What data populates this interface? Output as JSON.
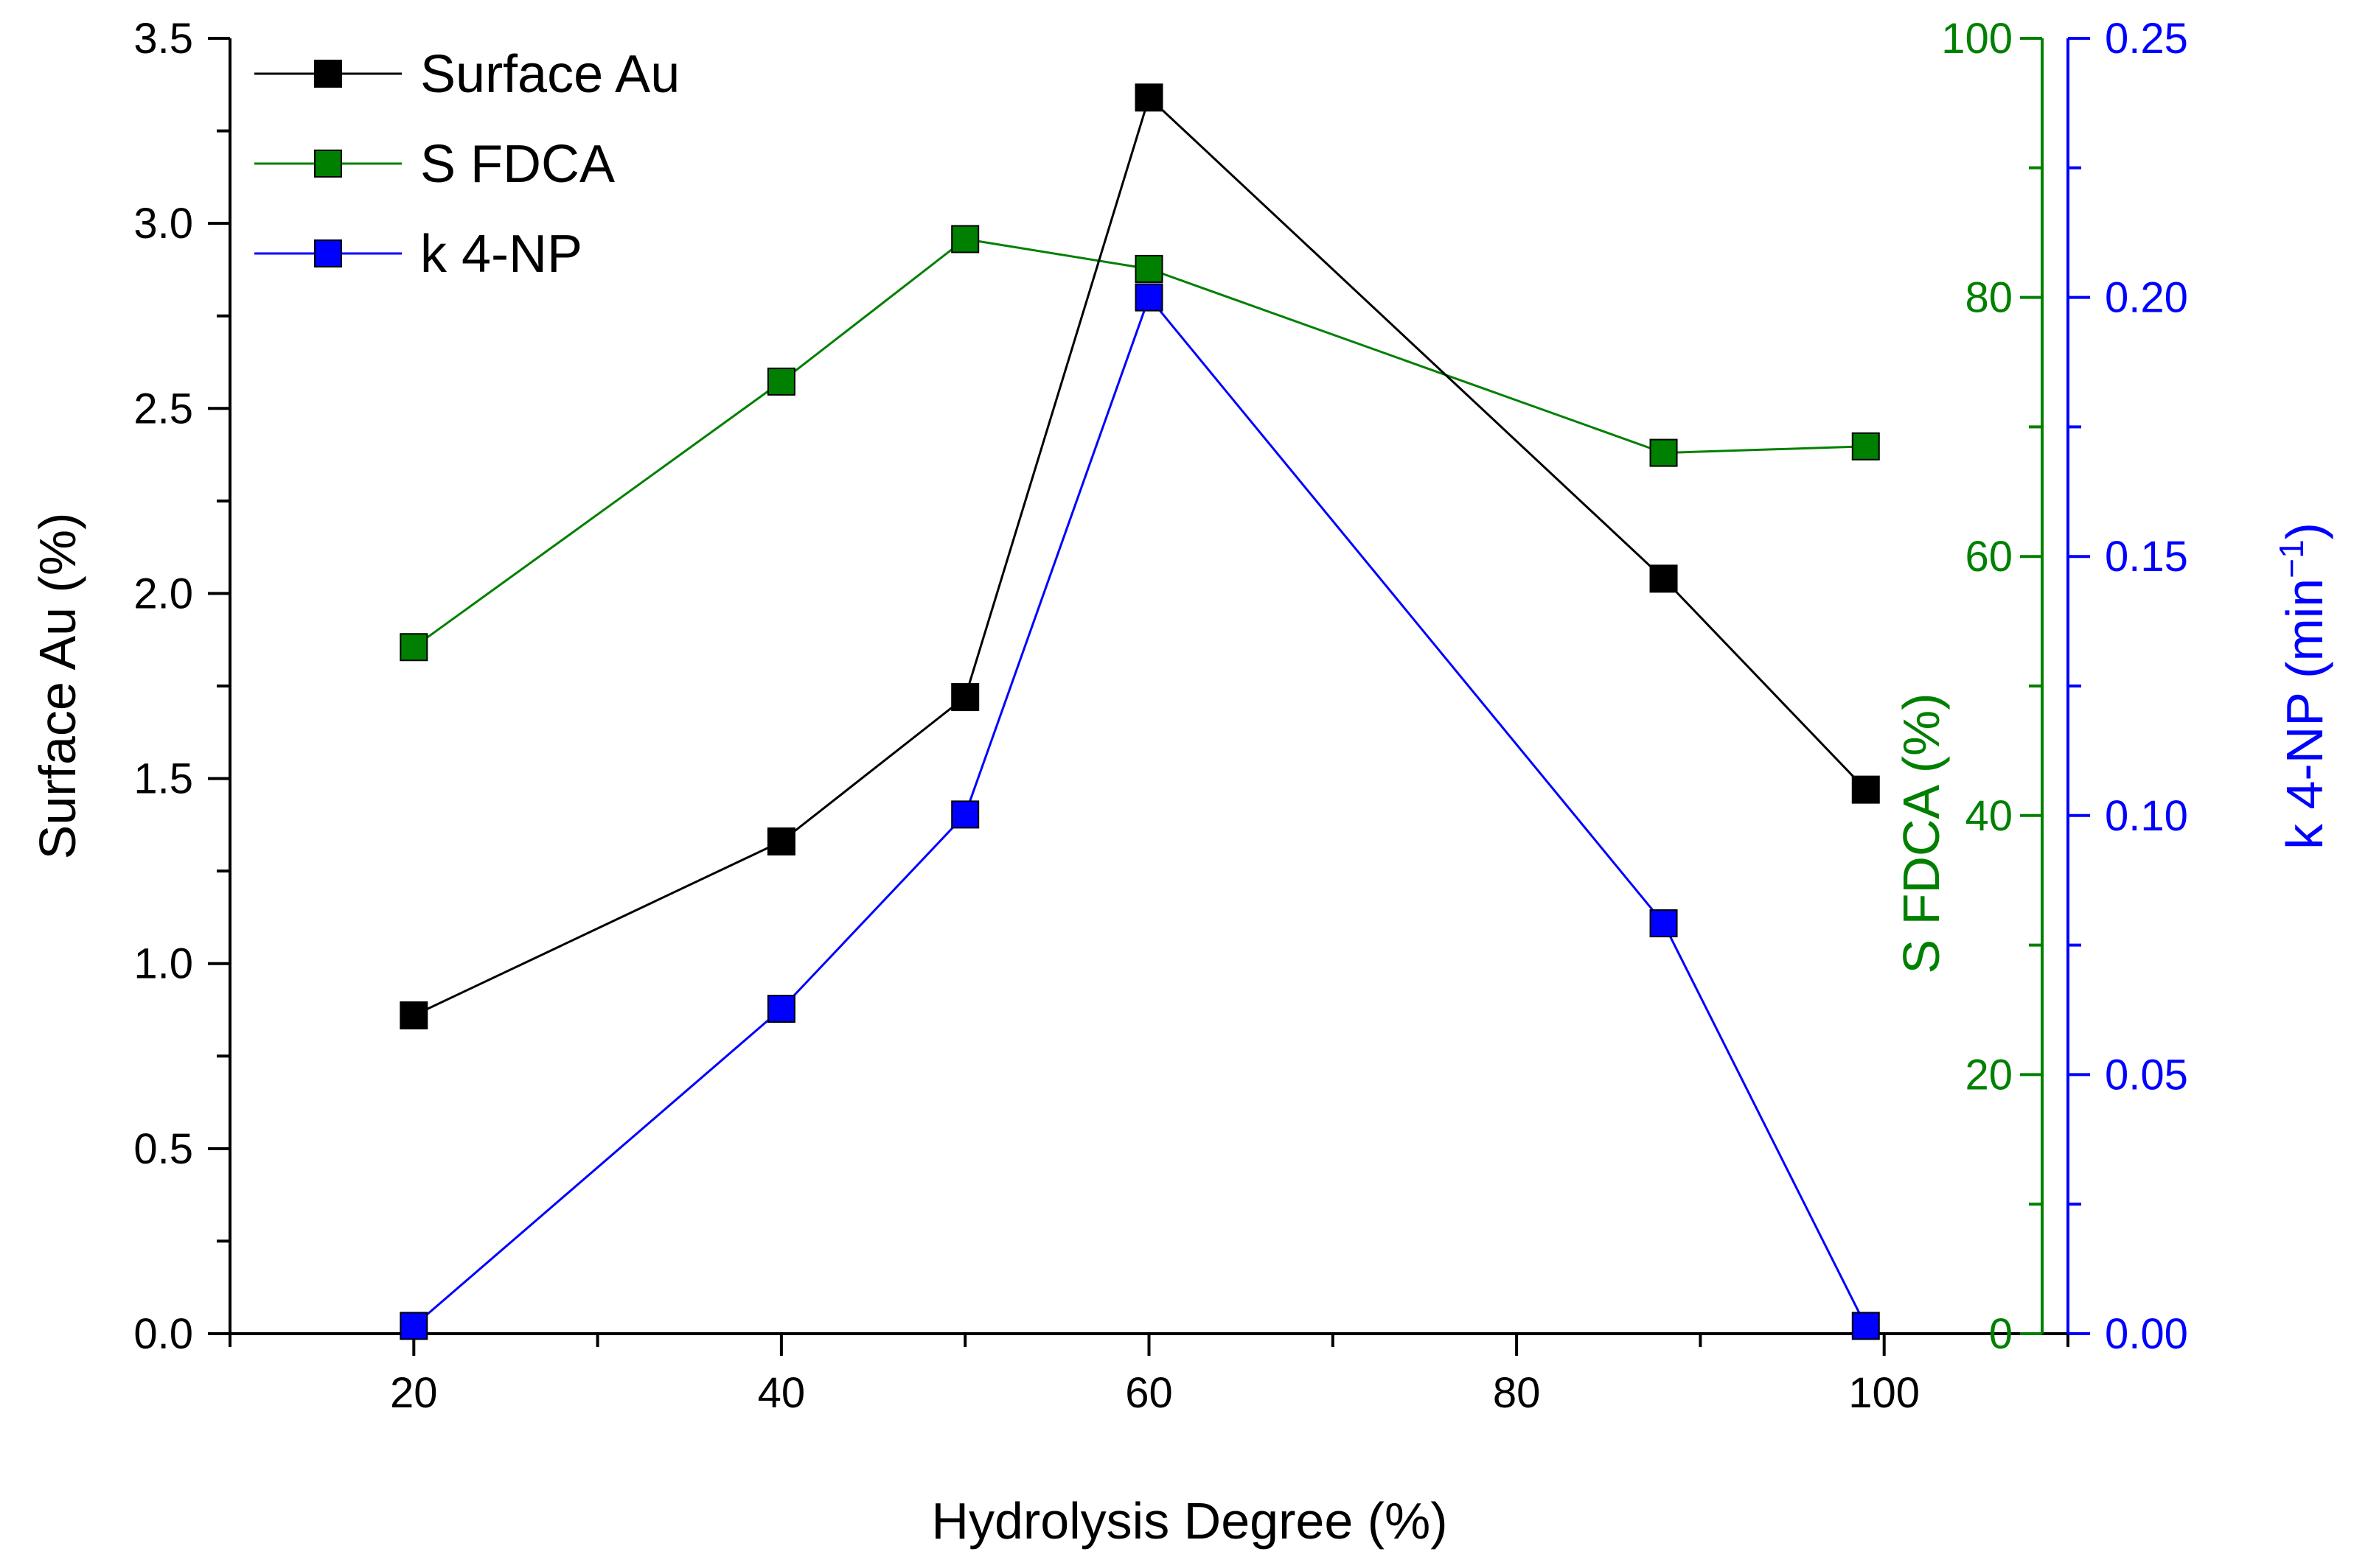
{
  "chart_data": {
    "type": "line",
    "title": "",
    "xlabel": "Hydrolysis Degree (%)",
    "xlim": [
      10,
      110
    ],
    "xticks": [
      20,
      40,
      60,
      80,
      100
    ],
    "xtick_labels": [
      "20",
      "40",
      "60",
      "80",
      "100"
    ],
    "x": [
      20,
      40,
      50,
      60,
      88,
      99
    ],
    "axes": {
      "left": {
        "label": "Surface Au (%)",
        "ylim": [
          0,
          3.5
        ],
        "ticks": [
          0,
          0.5,
          1.0,
          1.5,
          2.0,
          2.5,
          3.0,
          3.5
        ],
        "tick_labels": [
          "0.0",
          "0.5",
          "1.0",
          "1.5",
          "2.0",
          "2.5",
          "3.0",
          "3.5"
        ],
        "color": "#000000"
      },
      "right_inner": {
        "label": "S FDCA (%)",
        "ylim": [
          0,
          100
        ],
        "ticks": [
          0,
          20,
          40,
          60,
          80,
          100
        ],
        "tick_labels": [
          "0",
          "20",
          "40",
          "60",
          "80",
          "100"
        ],
        "color": "#008000"
      },
      "right_outer": {
        "label": "k 4-NP (min",
        "label_sup": "−1",
        "label_end": ")",
        "ylim": [
          0,
          0.25
        ],
        "ticks": [
          0,
          0.05,
          0.1,
          0.15,
          0.2,
          0.25
        ],
        "tick_labels": [
          "0.00",
          "0.05",
          "0.10",
          "0.15",
          "0.20",
          "0.25"
        ],
        "color": "#0000ff"
      }
    },
    "series": [
      {
        "name": "Surface Au",
        "axis": "left",
        "color": "#000000",
        "values": [
          0.86,
          1.33,
          1.72,
          3.34,
          2.04,
          1.47
        ]
      },
      {
        "name": "S FDCA",
        "axis": "right_inner",
        "color": "#008000",
        "values": [
          53.0,
          73.5,
          84.5,
          82.2,
          68.0,
          68.5
        ]
      },
      {
        "name": "k 4-NP",
        "axis": "right_outer",
        "color": "#0000ff",
        "values": [
          0.0015,
          0.0627,
          0.1002,
          0.2,
          0.0792,
          0.0015
        ]
      }
    ],
    "legend_position": "top-left"
  }
}
